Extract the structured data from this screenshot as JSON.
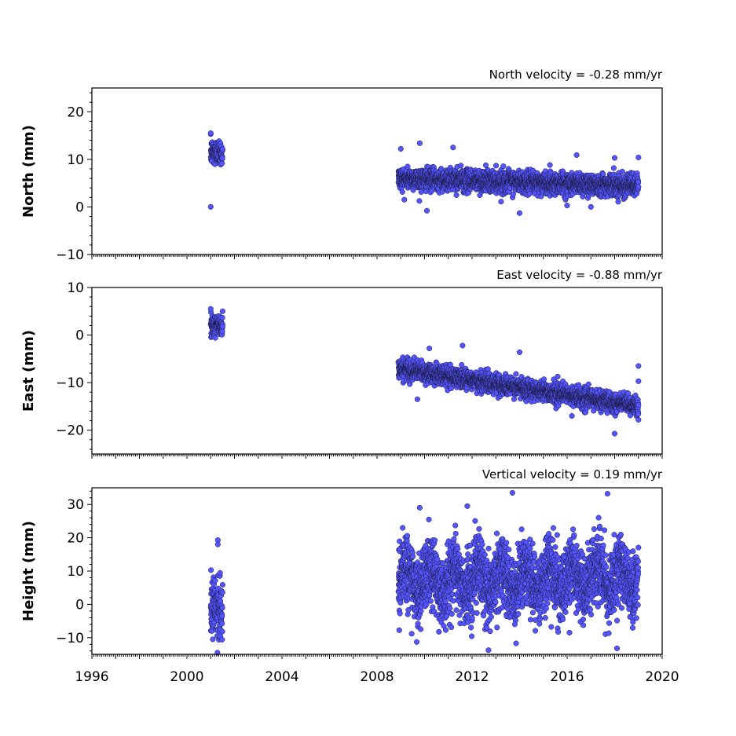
{
  "chart_data": [
    {
      "type": "scatter",
      "title": "North velocity = -0.28 mm/yr",
      "ylabel": "North (mm)",
      "xlim": [
        1996,
        2020
      ],
      "ylim": [
        -10,
        25
      ],
      "yticks": [
        -10,
        0,
        10,
        20
      ],
      "color": "#5555ff",
      "segments": [
        {
          "x_start": 2001.0,
          "x_end": 2001.5,
          "y_mean": 11.5,
          "y_spread": 2.5
        },
        {
          "x_start": 2008.9,
          "x_end": 2019.0,
          "y_start": 6.0,
          "y_end": 4.5,
          "y_spread": 2.0
        }
      ],
      "points": [
        {
          "x": 2001.0,
          "y": 0
        },
        {
          "x": 2001.0,
          "y": 15.5
        },
        {
          "x": 2009.0,
          "y": 12.2
        },
        {
          "x": 2009.8,
          "y": 13.4
        },
        {
          "x": 2011.2,
          "y": 12.5
        },
        {
          "x": 2010.1,
          "y": -0.8
        },
        {
          "x": 2014.0,
          "y": -1.3
        },
        {
          "x": 2016.4,
          "y": 10.9
        },
        {
          "x": 2016.0,
          "y": 0.3
        },
        {
          "x": 2017.0,
          "y": 0
        },
        {
          "x": 2018.0,
          "y": 10.3
        },
        {
          "x": 2019.0,
          "y": 10.4
        }
      ]
    },
    {
      "type": "scatter",
      "title": "East velocity = -0.88 mm/yr",
      "ylabel": "East (mm)",
      "xlim": [
        1996,
        2020
      ],
      "ylim": [
        -25,
        10
      ],
      "yticks": [
        -20,
        -10,
        0,
        10
      ],
      "color": "#5555ff",
      "segments": [
        {
          "x_start": 2001.0,
          "x_end": 2001.5,
          "y_mean": 2.0,
          "y_spread": 2.0
        },
        {
          "x_start": 2008.9,
          "x_end": 2019.0,
          "y_start": -7.0,
          "y_end": -15.0,
          "y_spread": 1.8
        }
      ],
      "points": [
        {
          "x": 2001.0,
          "y": 5.5
        },
        {
          "x": 2001.5,
          "y": 5.0
        },
        {
          "x": 2011.6,
          "y": -2.2
        },
        {
          "x": 2010.2,
          "y": -2.8
        },
        {
          "x": 2014.0,
          "y": -3.6
        },
        {
          "x": 2009.7,
          "y": -13.5
        },
        {
          "x": 2018.0,
          "y": -20.7
        },
        {
          "x": 2019.0,
          "y": -6.5
        },
        {
          "x": 2019.0,
          "y": -9.7
        },
        {
          "x": 2019.0,
          "y": -17.8
        },
        {
          "x": 2016.2,
          "y": -17.0
        }
      ]
    },
    {
      "type": "scatter",
      "title": "Vertical velocity = 0.19 mm/yr",
      "ylabel": "Height (mm)",
      "xlabel": "",
      "xlim": [
        1996,
        2020
      ],
      "ylim": [
        -15,
        35
      ],
      "yticks": [
        -10,
        0,
        10,
        20,
        30
      ],
      "xticks": [
        1996,
        2000,
        2004,
        2008,
        2012,
        2016,
        2020
      ],
      "color": "#5555ff",
      "segments": [
        {
          "x_start": 2001.0,
          "x_end": 2001.5,
          "y_mean": -1.0,
          "y_spread": 8.0
        },
        {
          "x_start": 2008.9,
          "x_end": 2019.0,
          "y_start": 7.0,
          "y_end": 8.0,
          "y_spread": 9.0
        }
      ],
      "points": [
        {
          "x": 2001.3,
          "y": 19.3
        },
        {
          "x": 2001.3,
          "y": 18.0
        },
        {
          "x": 2009.8,
          "y": 29.0
        },
        {
          "x": 2011.8,
          "y": 29.5
        },
        {
          "x": 2013.7,
          "y": 33.5
        },
        {
          "x": 2017.7,
          "y": 33.2
        },
        {
          "x": 2018.1,
          "y": -13.2
        },
        {
          "x": 2016.1,
          "y": -8.5
        },
        {
          "x": 2013.8,
          "y": -6.0
        }
      ]
    }
  ]
}
